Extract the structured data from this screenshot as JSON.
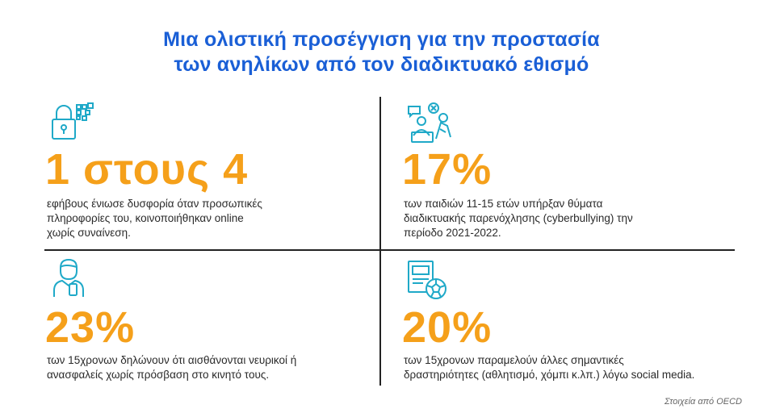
{
  "title": {
    "line1": "Μια ολιστική προσέγγιση για την προστασία",
    "line2": "των ανηλίκων από τον διαδικτυακό εθισμό"
  },
  "cells": [
    {
      "icon": "lock-privacy-icon",
      "stat": "1 στους 4",
      "desc_lines": [
        "εφήβους ένιωσε δυσφορία όταν προσωπικές",
        "πληροφορίες του, κοινοποιήθηκαν online",
        "χωρίς συναίνεση."
      ]
    },
    {
      "icon": "cyberbullying-icon",
      "stat": "17%",
      "desc_lines": [
        "των παιδιών 11-15 ετών υπήρξαν θύματα",
        "διαδικτυακής παρενόχλησης (cyberbullying) την",
        "περίοδο 2021-2022."
      ]
    },
    {
      "icon": "person-phone-icon",
      "stat": "23%",
      "desc_lines": [
        "των 15χρονων δηλώνουν ότι αισθάνονται νευρικοί ή",
        "ανασφαλείς χωρίς πρόσβαση στο κινητό τους."
      ]
    },
    {
      "icon": "book-ball-icon",
      "stat": "20%",
      "desc_lines": [
        "των 15χρονων παραμελούν άλλες σημαντικές",
        "δραστηριότητες (αθλητισμό, χόμπι κ.λπ.) λόγω social media."
      ]
    }
  ],
  "source": "Στοιχεία από OECD",
  "colors": {
    "title": "#1a5fd6",
    "stat": "#f5a01a",
    "icon": "#1fa9c8",
    "divider": "#222222"
  }
}
